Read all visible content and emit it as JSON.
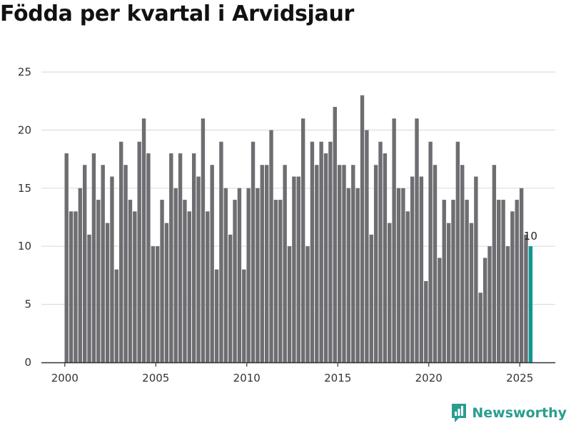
{
  "chart_data": {
    "type": "bar",
    "title": "Födda per kvartal i Arvidsjaur",
    "xlabel": "",
    "ylabel": "",
    "ylim": [
      0,
      25
    ],
    "yticks": [
      0,
      5,
      10,
      15,
      20,
      25
    ],
    "xticks": [
      "2000",
      "2005",
      "2010",
      "2015",
      "2020",
      "2025"
    ],
    "grid": true,
    "start_year": 2000,
    "start_quarter": 1,
    "colors": {
      "bar": "#6e6d71",
      "highlight": "#10968f",
      "grid": "#dddddd",
      "axis": "#333333"
    },
    "categories": [
      "2000K1",
      "2000K2",
      "2000K3",
      "2000K4",
      "2001K1",
      "2001K2",
      "2001K3",
      "2001K4",
      "2002K1",
      "2002K2",
      "2002K3",
      "2002K4",
      "2003K1",
      "2003K2",
      "2003K3",
      "2003K4",
      "2004K1",
      "2004K2",
      "2004K3",
      "2004K4",
      "2005K1",
      "2005K2",
      "2005K3",
      "2005K4",
      "2006K1",
      "2006K2",
      "2006K3",
      "2006K4",
      "2007K1",
      "2007K2",
      "2007K3",
      "2007K4",
      "2008K1",
      "2008K2",
      "2008K3",
      "2008K4",
      "2009K1",
      "2009K2",
      "2009K3",
      "2009K4",
      "2010K1",
      "2010K2",
      "2010K3",
      "2010K4",
      "2011K1",
      "2011K2",
      "2011K3",
      "2011K4",
      "2012K1",
      "2012K2",
      "2012K3",
      "2012K4",
      "2013K1",
      "2013K2",
      "2013K3",
      "2013K4",
      "2014K1",
      "2014K2",
      "2014K3",
      "2014K4",
      "2015K1",
      "2015K2",
      "2015K3",
      "2015K4",
      "2016K1",
      "2016K2",
      "2016K3",
      "2016K4",
      "2017K1",
      "2017K2",
      "2017K3",
      "2017K4",
      "2018K1",
      "2018K2",
      "2018K3",
      "2018K4",
      "2019K1",
      "2019K2",
      "2019K3",
      "2019K4",
      "2020K1",
      "2020K2",
      "2020K3",
      "2020K4",
      "2021K1",
      "2021K2",
      "2021K3",
      "2021K4",
      "2022K1",
      "2022K2",
      "2022K3",
      "2022K4",
      "2023K1",
      "2023K2",
      "2023K3",
      "2023K4",
      "2024K1",
      "2024K2",
      "2024K3",
      "2024K4",
      "2025K1",
      "2025K2",
      "2025K3"
    ],
    "values": [
      18,
      13,
      13,
      15,
      17,
      11,
      18,
      14,
      17,
      12,
      16,
      8,
      19,
      17,
      14,
      13,
      19,
      21,
      18,
      10,
      10,
      14,
      12,
      18,
      15,
      18,
      14,
      13,
      18,
      16,
      21,
      13,
      17,
      8,
      19,
      15,
      11,
      14,
      15,
      8,
      15,
      19,
      15,
      17,
      17,
      20,
      14,
      14,
      17,
      10,
      16,
      16,
      21,
      10,
      19,
      17,
      19,
      18,
      19,
      22,
      17,
      17,
      15,
      17,
      15,
      23,
      20,
      11,
      17,
      19,
      18,
      12,
      21,
      15,
      15,
      13,
      16,
      21,
      16,
      7,
      19,
      17,
      9,
      14,
      12,
      14,
      19,
      17,
      14,
      12,
      16,
      6,
      9,
      10,
      17,
      14,
      14,
      10,
      13,
      14,
      15,
      11,
      10
    ],
    "highlight_index": 102,
    "data_labels": [
      {
        "index": 102,
        "text": "10"
      }
    ]
  },
  "brand": {
    "name": "Newsworthy",
    "icon": "newsworthy-logo-icon"
  }
}
